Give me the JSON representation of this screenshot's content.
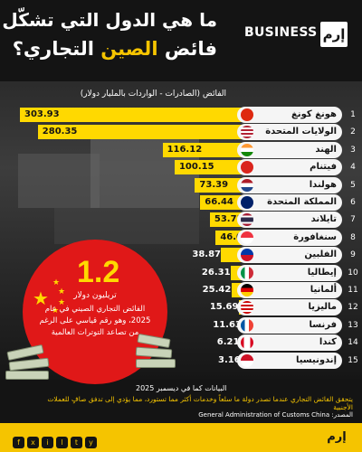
{
  "header": {
    "brand": "BUSINESS",
    "logo": "إرم",
    "title_line1": "ما هي الدول التي تشكّل",
    "title_line2_a": "فائض ",
    "title_line2_highlight": "الصين",
    "title_line2_b": " التجاري؟"
  },
  "chart_data": {
    "type": "bar",
    "title": "ما هي الدول التي تشكّل فائض الصين التجاري؟",
    "subtitle": "الفائض (الصادرات - الواردات بالمليار دولار)",
    "categories": [
      "هونغ كونغ",
      "الولايات المتحدة",
      "الهند",
      "فيتنام",
      "هولندا",
      "المملكة المتحدة",
      "تايلاند",
      "سنغافورة",
      "الفلبين",
      "إيطاليا",
      "ألمانيا",
      "ماليزيا",
      "فرنسا",
      "كندا",
      "إندونيسيا"
    ],
    "ranks": [
      "1",
      "2",
      "3",
      "4",
      "5",
      "6",
      "7",
      "8",
      "9",
      "10",
      "11",
      "12",
      "13",
      "14",
      "15"
    ],
    "values": [
      303.93,
      280.35,
      116.12,
      100.15,
      73.39,
      66.44,
      53.75,
      46.08,
      38.87,
      26.31,
      25.42,
      15.69,
      11.63,
      6.21,
      3.16
    ],
    "value_labels": [
      "303.93",
      "280.35",
      "116.12",
      "100.15",
      "73.39",
      "66.44",
      "53.75",
      "46.08",
      "38.87",
      "26.31",
      "25.42",
      "15.69",
      "11.63",
      "6.21",
      "3.16"
    ],
    "flags": [
      "hong-kong",
      "united-states",
      "india",
      "vietnam",
      "netherlands",
      "united-kingdom",
      "thailand",
      "singapore",
      "philippines",
      "italy",
      "germany",
      "malaysia",
      "france",
      "canada",
      "indonesia"
    ],
    "orientation": "horizontal",
    "bar_color": "#ffd900",
    "xlim": [
      0,
      303.93
    ]
  },
  "highlight": {
    "value": "1.2",
    "unit": "تريليون دولار",
    "note": "الفائض التجاري الصيني في عام 2025، وهو رقم قياسي على الرغم من تصاعد التوترات العالمية"
  },
  "footer": {
    "date_note": "البيانات كما في ديسمبر 2025",
    "footnote": "يتحقق الفائض التجاري عندما تصدر دولة ما سلعاً وخدمات أكثر مما تستورد، مما يؤدي إلى تدفق صافٍ للعملات الأجنبية",
    "source": "المصدر: General Administration of Customs China",
    "social_icons": [
      "f",
      "x",
      "ig",
      "li",
      "tt",
      "yt"
    ],
    "logo": "إرم"
  },
  "colors": {
    "accent": "#f5c400",
    "bar": "#ffd900",
    "red": "#e01818",
    "dark": "#141414"
  }
}
